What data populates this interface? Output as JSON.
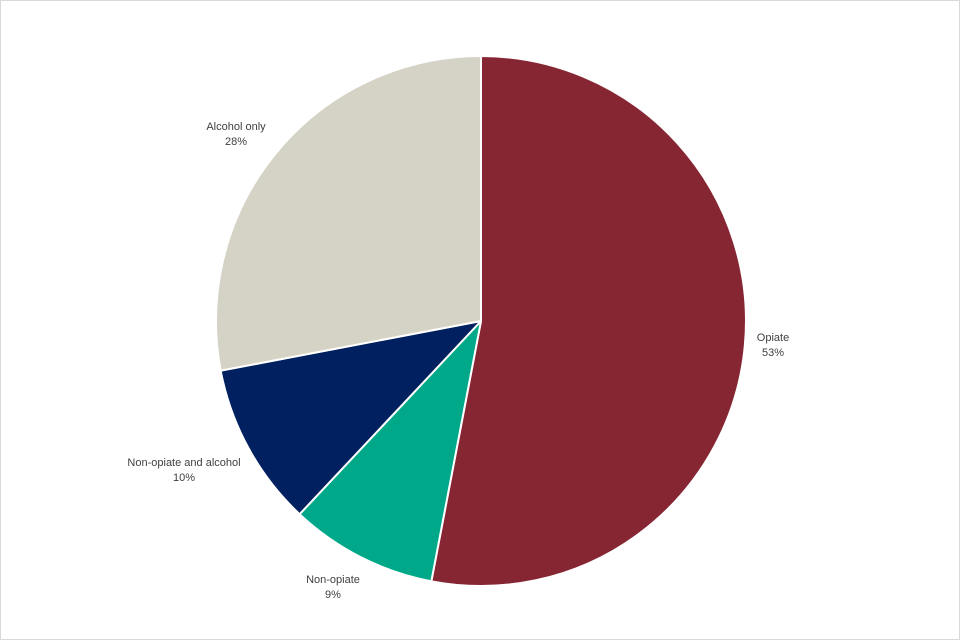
{
  "chart_data": {
    "type": "pie",
    "title": "",
    "start_angle_deg": 0,
    "direction": "clockwise",
    "slices": [
      {
        "label": "Opiate",
        "value": 53,
        "value_text": "53%",
        "color": "#862633"
      },
      {
        "label": "Non-opiate",
        "value": 9,
        "value_text": "9%",
        "color": "#00a88a"
      },
      {
        "label": "Non-opiate and alcohol",
        "value": 10,
        "value_text": "10%",
        "color": "#002060"
      },
      {
        "label": "Alcohol only",
        "value": 28,
        "value_text": "28%",
        "color": "#d5d3c5"
      }
    ],
    "legend": "none",
    "data_labels": "outside"
  }
}
